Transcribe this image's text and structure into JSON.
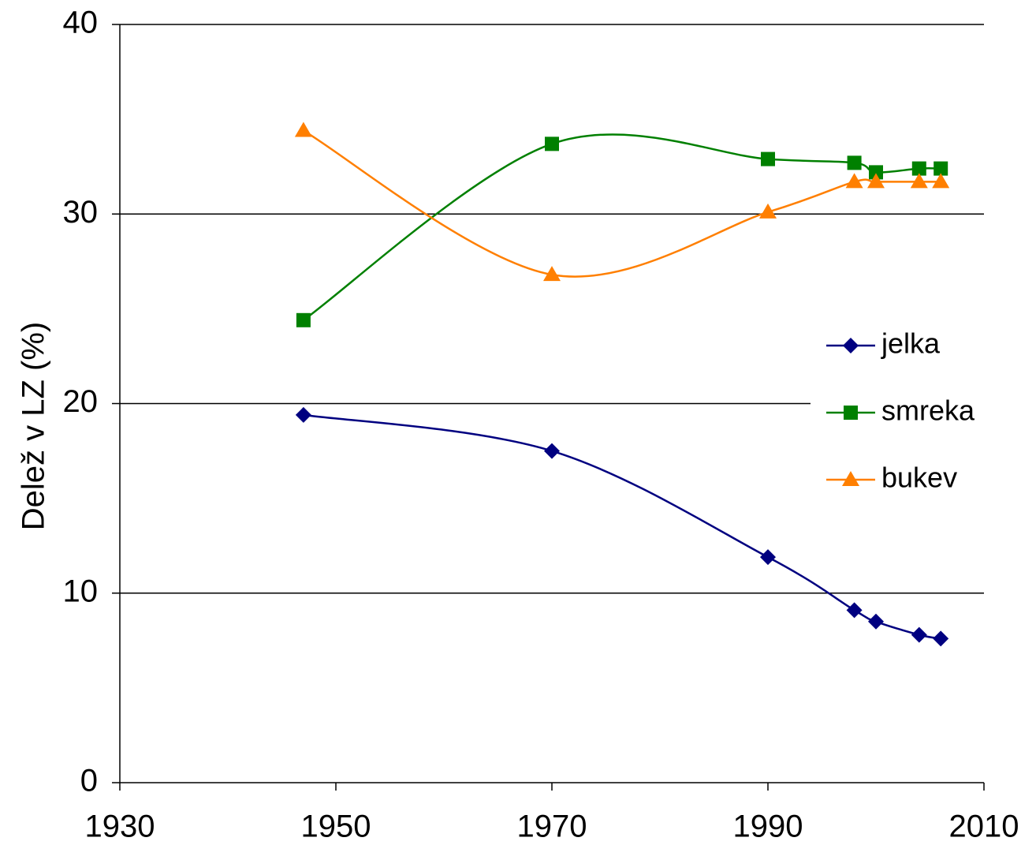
{
  "chart_data": {
    "type": "line",
    "y_label": "Delež v LZ (%)",
    "x": [
      1947,
      1970,
      1990,
      1998,
      2000,
      2004,
      2006
    ],
    "series": [
      {
        "name": "jelka",
        "color": "#000080",
        "marker": "diamond",
        "values": [
          19.4,
          17.5,
          11.9,
          9.1,
          8.5,
          7.8,
          7.6
        ]
      },
      {
        "name": "smreka",
        "color": "#008000",
        "marker": "square",
        "values": [
          24.4,
          33.7,
          32.9,
          32.7,
          32.2,
          32.4,
          32.4
        ]
      },
      {
        "name": "bukev",
        "color": "#ff7f00",
        "marker": "triangle",
        "values": [
          34.4,
          26.8,
          30.1,
          31.7,
          31.7,
          31.7,
          31.7
        ]
      }
    ],
    "xlim": [
      1930,
      2010
    ],
    "xticks": [
      1930,
      1950,
      1970,
      1990,
      2010
    ],
    "ylim": [
      0,
      40
    ],
    "yticks": [
      0,
      10,
      20,
      30,
      40
    ],
    "grid": true,
    "legend": "right",
    "smooth": true
  }
}
